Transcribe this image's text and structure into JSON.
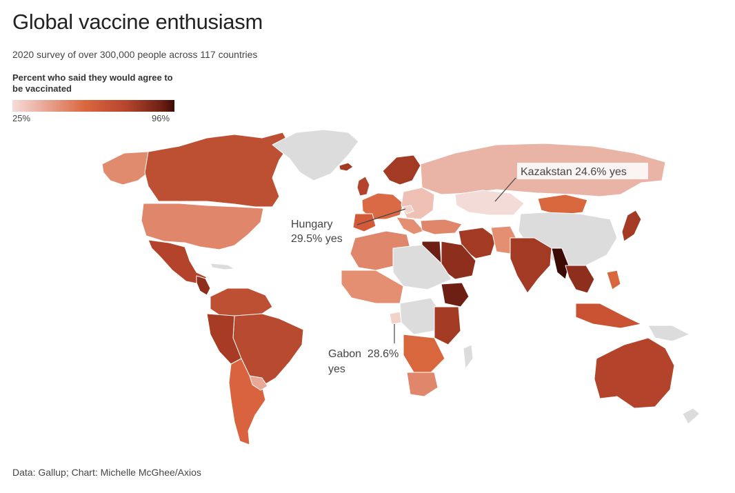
{
  "title": "Global vaccine enthusiasm",
  "subtitle": "2020 survey of over 300,000 people across 117 countries",
  "legend": {
    "title": "Percent who said they would agree to be vaccinated",
    "min_label": "25%",
    "max_label": "96%",
    "colors": [
      "#f6dcd8",
      "#e9a796",
      "#d9673e",
      "#b6452d",
      "#6e1f14",
      "#3c0b06"
    ]
  },
  "no_data_color": "#dcdcdc",
  "annotations": {
    "kazakhstan": "Kazakstan 24.6% yes",
    "hungary_line1": "Hungary",
    "hungary_line2": "29.5% yes",
    "gabon_line1": "Gabon  28.6%",
    "gabon_line2": "yes"
  },
  "source": "Data: Gallup; Chart: Michelle McGhee/Axios"
}
